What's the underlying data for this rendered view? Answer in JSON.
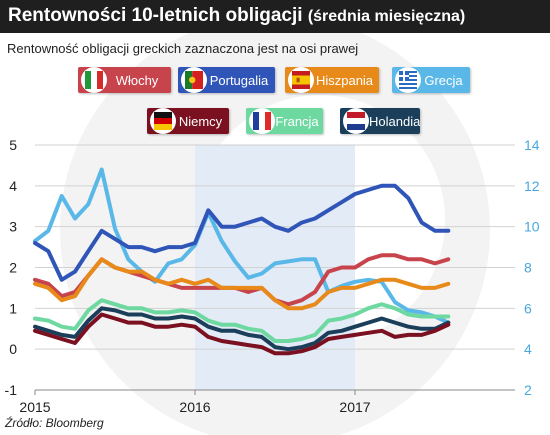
{
  "header": {
    "title_main": "Rentowności 10-letnich obligacji",
    "title_suffix": "(średnia miesięczna)",
    "subtitle": "Rentowność obligacji greckich zaznaczona jest na osi prawej",
    "source": "Źródło: Bloomberg"
  },
  "legend": [
    {
      "key": "wlochy",
      "label": "Włochy",
      "color": "#c8444c",
      "text_color": "#ffffff",
      "flag_icon": "italy-flag-icon"
    },
    {
      "key": "portugalia",
      "label": "Portugalia",
      "color": "#2f55b8",
      "text_color": "#ffffff",
      "flag_icon": "portugal-flag-icon"
    },
    {
      "key": "hiszpania",
      "label": "Hiszpania",
      "color": "#e88a1a",
      "text_color": "#ffffff",
      "flag_icon": "spain-flag-icon"
    },
    {
      "key": "grecja",
      "label": "Grecja",
      "color": "#5ab8e8",
      "text_color": "#ffffff",
      "flag_icon": "greece-flag-icon"
    },
    {
      "key": "niemcy",
      "label": "Niemcy",
      "color": "#7a1020",
      "text_color": "#ffffff",
      "flag_icon": "germany-flag-icon"
    },
    {
      "key": "francja",
      "label": "Francja",
      "color": "#6dd8a0",
      "text_color": "#ffffff",
      "flag_icon": "france-flag-icon"
    },
    {
      "key": "holandia",
      "label": "Holandia",
      "color": "#1b3f5a",
      "text_color": "#ffffff",
      "flag_icon": "netherlands-flag-icon"
    }
  ],
  "chart_data": {
    "type": "line",
    "x": [
      "2015-01",
      "2015-02",
      "2015-03",
      "2015-04",
      "2015-05",
      "2015-06",
      "2015-07",
      "2015-08",
      "2015-09",
      "2015-10",
      "2015-11",
      "2015-12",
      "2016-01",
      "2016-02",
      "2016-03",
      "2016-04",
      "2016-05",
      "2016-06",
      "2016-07",
      "2016-08",
      "2016-09",
      "2016-10",
      "2016-11",
      "2016-12",
      "2017-01",
      "2017-02",
      "2017-03",
      "2017-04",
      "2017-05",
      "2017-06",
      "2017-07",
      "2017-08"
    ],
    "x_tick_labels": [
      "2015",
      "2016",
      "2017"
    ],
    "x_tick_positions": [
      "2015-01",
      "2016-01",
      "2017-01"
    ],
    "shaded_range": [
      "2016-01",
      "2016-12"
    ],
    "y_left": {
      "ticks": [
        "-1",
        "0",
        "1",
        "2",
        "3",
        "4",
        "5"
      ],
      "ylim": [
        -1,
        5
      ]
    },
    "y_right": {
      "ticks": [
        "2",
        "4",
        "6",
        "8",
        "10",
        "12",
        "14"
      ],
      "ylim": [
        2,
        14
      ]
    },
    "grid": true,
    "series": [
      {
        "name": "Grecja",
        "key": "grecja",
        "axis": "right",
        "color": "#5ab8e8",
        "values": [
          9.3,
          9.8,
          11.5,
          10.4,
          11.1,
          12.8,
          9.9,
          8.4,
          7.8,
          7.3,
          8.2,
          8.4,
          9.1,
          10.7,
          9.3,
          8.3,
          7.5,
          7.7,
          8.2,
          8.3,
          8.4,
          8.4,
          6.8,
          7.1,
          7.3,
          7.4,
          7.3,
          6.3,
          5.9,
          5.8,
          5.6,
          5.3
        ]
      },
      {
        "name": "Portugalia",
        "key": "portugalia",
        "axis": "left",
        "color": "#2f55b8",
        "values": [
          2.6,
          2.4,
          1.7,
          1.9,
          2.4,
          2.9,
          2.7,
          2.5,
          2.5,
          2.4,
          2.5,
          2.5,
          2.6,
          3.4,
          3.0,
          3.0,
          3.1,
          3.2,
          3.0,
          2.9,
          3.1,
          3.2,
          3.4,
          3.6,
          3.8,
          3.9,
          4.0,
          4.0,
          3.7,
          3.1,
          2.9,
          2.9
        ]
      },
      {
        "name": "Włochy",
        "key": "wlochy",
        "axis": "left",
        "color": "#c8444c",
        "values": [
          1.7,
          1.6,
          1.3,
          1.4,
          1.8,
          2.2,
          2.0,
          1.9,
          1.8,
          1.7,
          1.6,
          1.5,
          1.5,
          1.5,
          1.5,
          1.5,
          1.4,
          1.5,
          1.2,
          1.1,
          1.2,
          1.4,
          1.9,
          2.0,
          2.0,
          2.2,
          2.3,
          2.3,
          2.2,
          2.2,
          2.1,
          2.2
        ]
      },
      {
        "name": "Hiszpania",
        "key": "hiszpania",
        "axis": "left",
        "color": "#e88a1a",
        "values": [
          1.6,
          1.5,
          1.2,
          1.3,
          1.8,
          2.2,
          2.0,
          1.9,
          1.9,
          1.7,
          1.6,
          1.7,
          1.6,
          1.7,
          1.5,
          1.5,
          1.5,
          1.5,
          1.2,
          1.0,
          1.0,
          1.1,
          1.4,
          1.5,
          1.5,
          1.6,
          1.7,
          1.7,
          1.6,
          1.5,
          1.5,
          1.6
        ]
      },
      {
        "name": "Francja",
        "key": "francja",
        "axis": "left",
        "color": "#6dd8a0",
        "values": [
          0.75,
          0.7,
          0.55,
          0.5,
          0.95,
          1.2,
          1.1,
          1.0,
          1.0,
          0.9,
          0.9,
          0.95,
          0.9,
          0.7,
          0.6,
          0.6,
          0.5,
          0.45,
          0.2,
          0.2,
          0.25,
          0.35,
          0.7,
          0.75,
          0.85,
          1.0,
          1.1,
          1.0,
          0.85,
          0.8,
          0.8,
          0.8
        ]
      },
      {
        "name": "Holandia",
        "key": "holandia",
        "axis": "left",
        "color": "#1b3f5a",
        "values": [
          0.55,
          0.45,
          0.35,
          0.3,
          0.7,
          1.0,
          0.95,
          0.85,
          0.85,
          0.75,
          0.75,
          0.8,
          0.75,
          0.55,
          0.45,
          0.45,
          0.35,
          0.3,
          0.05,
          0.0,
          0.05,
          0.15,
          0.4,
          0.45,
          0.55,
          0.65,
          0.75,
          0.65,
          0.55,
          0.5,
          0.5,
          0.65
        ]
      },
      {
        "name": "Niemcy",
        "key": "niemcy",
        "axis": "left",
        "color": "#7a1020",
        "values": [
          0.45,
          0.35,
          0.25,
          0.15,
          0.55,
          0.85,
          0.75,
          0.65,
          0.65,
          0.55,
          0.55,
          0.6,
          0.55,
          0.3,
          0.2,
          0.15,
          0.1,
          0.05,
          -0.1,
          -0.1,
          -0.05,
          0.05,
          0.25,
          0.3,
          0.35,
          0.4,
          0.45,
          0.3,
          0.35,
          0.35,
          0.45,
          0.6
        ]
      }
    ]
  }
}
